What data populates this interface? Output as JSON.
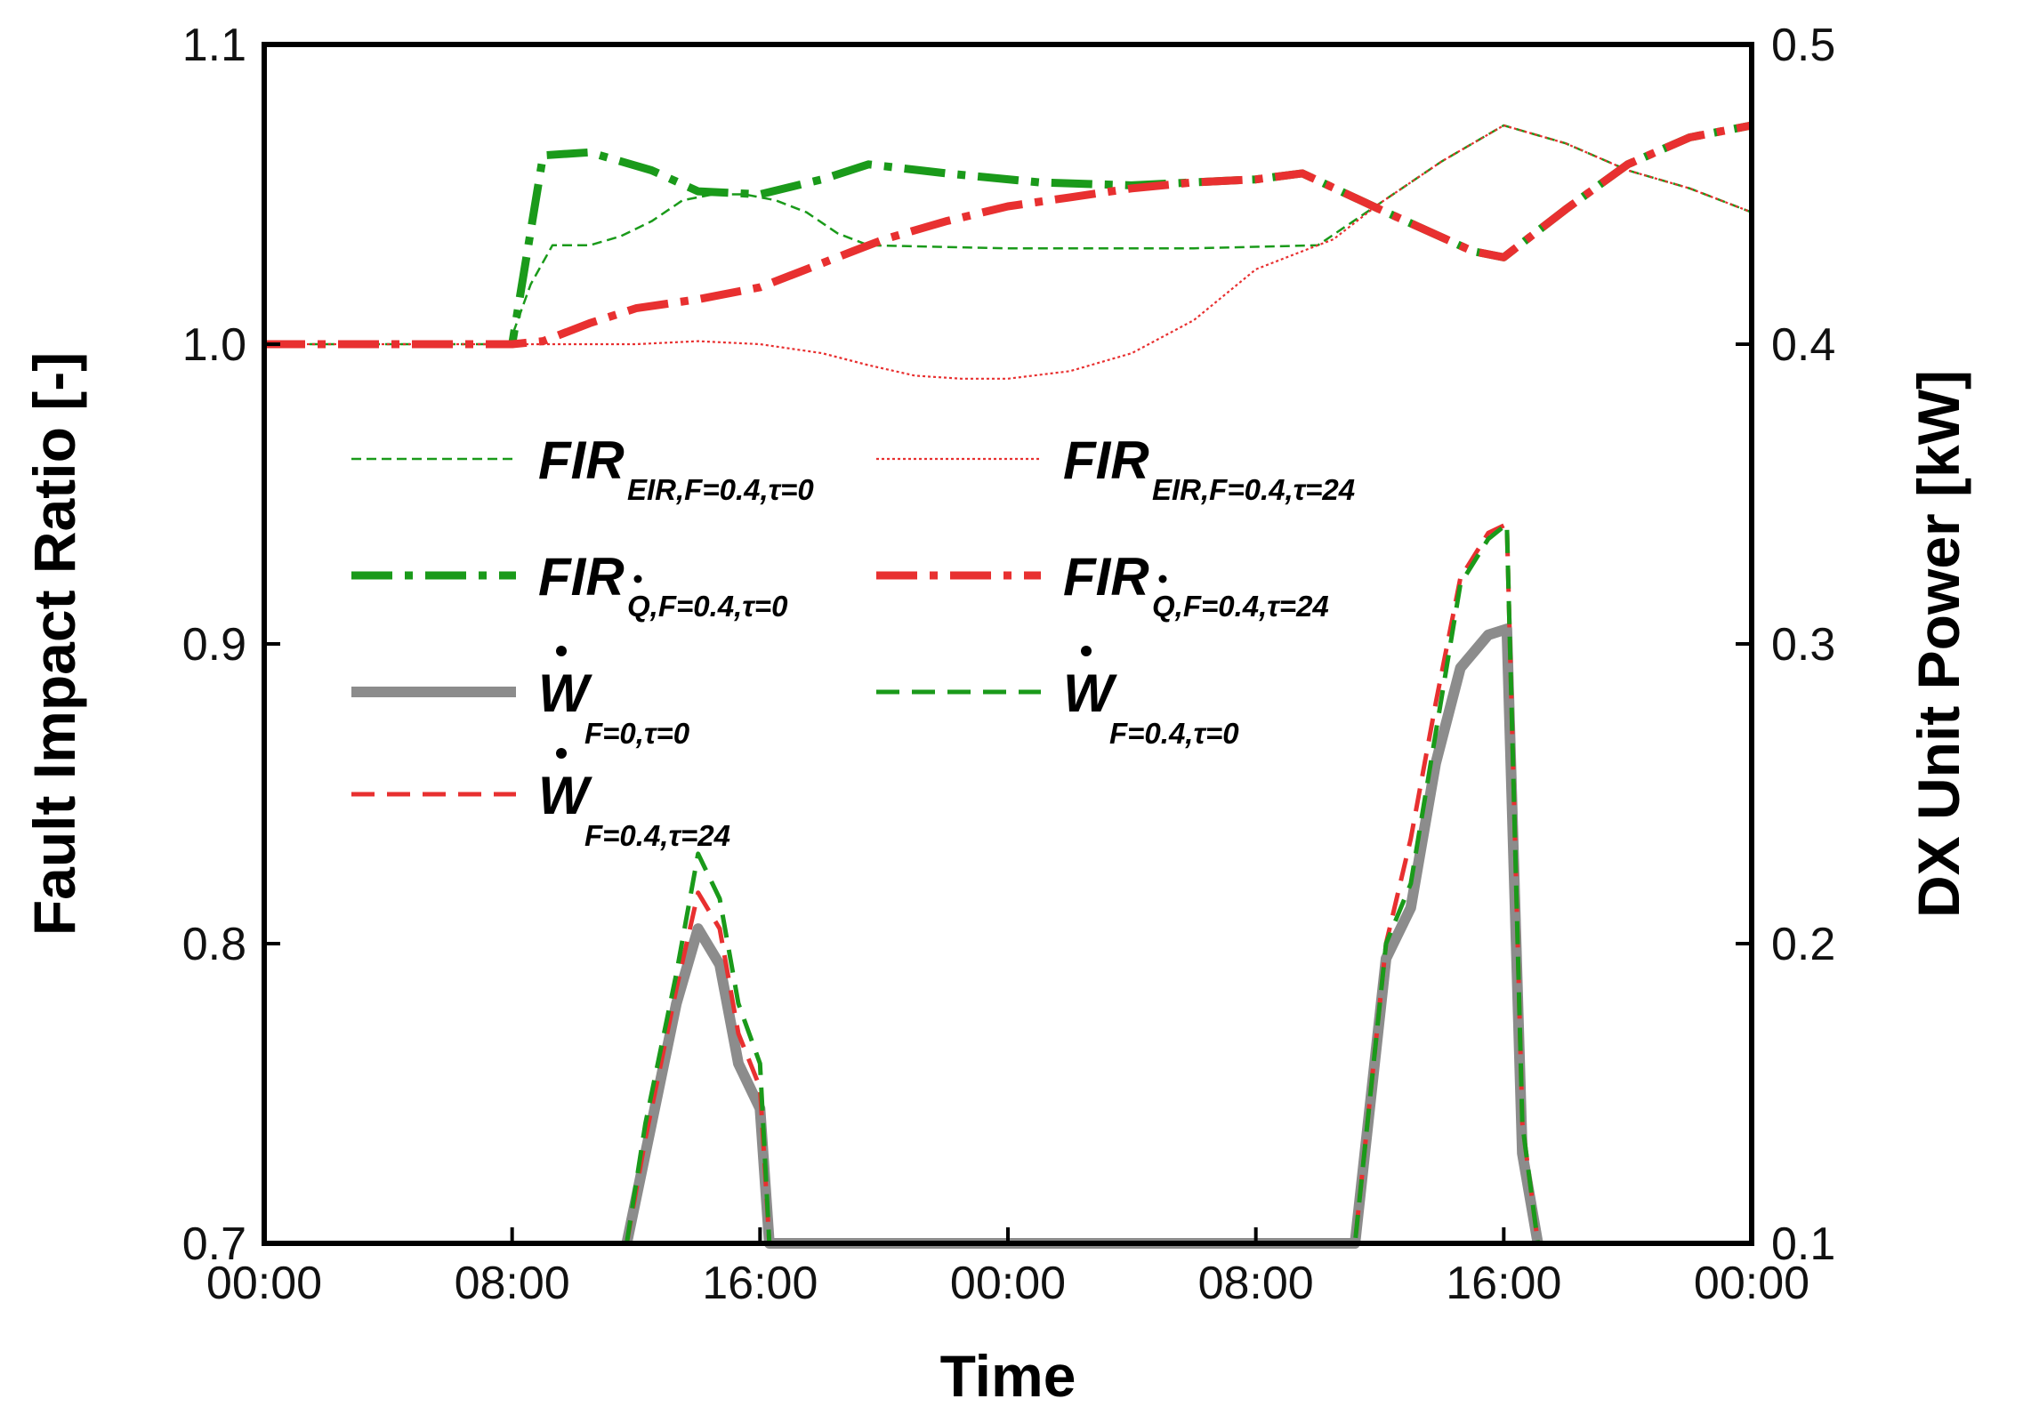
{
  "chart_data": {
    "type": "line",
    "xlabel": "Time",
    "ylabel_left": "Fault Impact Ratio [-]",
    "ylabel_right": "DX Unit Power [kW]",
    "x_tick_labels": [
      "00:00",
      "08:00",
      "16:00",
      "00:00",
      "08:00",
      "16:00",
      "00:00"
    ],
    "x_tick_hours": [
      0,
      8,
      16,
      24,
      32,
      40,
      48
    ],
    "xlim": [
      0,
      48
    ],
    "ylim_left": [
      0.7,
      1.1
    ],
    "ylim_right": [
      0.1,
      0.5
    ],
    "y_left_ticks": [
      "0.7",
      "0.8",
      "0.9",
      "1.0",
      "1.1"
    ],
    "y_left_values": [
      0.7,
      0.8,
      0.9,
      1.0,
      1.1
    ],
    "y_right_ticks": [
      "0.1",
      "0.2",
      "0.3",
      "0.4",
      "0.5"
    ],
    "y_right_values": [
      0.1,
      0.2,
      0.3,
      0.4,
      0.5
    ],
    "series": [
      {
        "key": "fir_eir_t0",
        "axis": "left",
        "color": "#1a9a1a",
        "style": "thin-dashed",
        "legend_main": "FIR",
        "legend_sub": "EIR,F=0.4,τ=0",
        "x": [
          0,
          7.9,
          8.6,
          9.3,
          10.5,
          11.5,
          12.5,
          13.5,
          14.5,
          15.5,
          16.5,
          17.5,
          18.5,
          19.5,
          24,
          30,
          34,
          36,
          38,
          40,
          42,
          44,
          46,
          48
        ],
        "y": [
          1.0,
          1.0,
          1.02,
          1.033,
          1.033,
          1.036,
          1.041,
          1.048,
          1.05,
          1.05,
          1.048,
          1.044,
          1.037,
          1.033,
          1.032,
          1.032,
          1.033,
          1.047,
          1.061,
          1.073,
          1.067,
          1.058,
          1.052,
          1.044
        ]
      },
      {
        "key": "fir_eir_t24",
        "axis": "left",
        "color": "#e83030",
        "style": "thin-dotted",
        "legend_main": "FIR",
        "legend_sub": "EIR,F=0.4,τ=24",
        "x": [
          0,
          8,
          12,
          14,
          16,
          18,
          19.5,
          21,
          22.5,
          24,
          26,
          28,
          30,
          32,
          33.5,
          34.5,
          36,
          38,
          40,
          42,
          44,
          46,
          48
        ],
        "y": [
          1.0,
          1.0,
          1.0,
          1.001,
          1.0,
          0.997,
          0.993,
          0.9895,
          0.9885,
          0.9885,
          0.991,
          0.997,
          1.008,
          1.025,
          1.031,
          1.035,
          1.047,
          1.061,
          1.073,
          1.067,
          1.058,
          1.052,
          1.044
        ]
      },
      {
        "key": "fir_q_t0",
        "axis": "left",
        "color": "#1a9a1a",
        "style": "thick-dashdot",
        "legend_main": "FIR",
        "legend_sub": "Q,F=0.4,τ=0",
        "x": [
          0,
          8,
          9,
          10.5,
          12.5,
          14,
          16,
          18,
          19.5,
          22,
          25,
          28,
          30,
          32,
          33.5,
          36,
          39,
          40,
          42,
          44,
          46,
          48
        ],
        "y": [
          1.0,
          1.0,
          1.063,
          1.064,
          1.058,
          1.051,
          1.05,
          1.055,
          1.06,
          1.057,
          1.054,
          1.053,
          1.054,
          1.055,
          1.057,
          1.045,
          1.031,
          1.029,
          1.045,
          1.06,
          1.069,
          1.073
        ]
      },
      {
        "key": "fir_q_t24",
        "axis": "left",
        "color": "#e83030",
        "style": "thick-dashdot",
        "legend_main": "FIR",
        "legend_sub": "Q,F=0.4,τ=24",
        "x": [
          0,
          8,
          9,
          10.5,
          12,
          14,
          16,
          17,
          18,
          19,
          20,
          22,
          24,
          26,
          28,
          30,
          32,
          33.5,
          36,
          39,
          40,
          42,
          44,
          46,
          48
        ],
        "y": [
          1.0,
          1.0,
          1.001,
          1.007,
          1.012,
          1.015,
          1.019,
          1.023,
          1.027,
          1.031,
          1.035,
          1.041,
          1.046,
          1.049,
          1.052,
          1.054,
          1.055,
          1.057,
          1.045,
          1.031,
          1.029,
          1.045,
          1.06,
          1.069,
          1.073
        ]
      },
      {
        "key": "w_f0",
        "axis": "right",
        "color": "#8c8c8c",
        "style": "thick-solid",
        "legend_main": "W",
        "legend_sub": "F=0,τ=0",
        "x": [
          11.7,
          12.3,
          13.3,
          14,
          14.7,
          15.3,
          16,
          16.3,
          35.2,
          36.2,
          37,
          37.8,
          38.6,
          39.5,
          40.1,
          40.6,
          41.1
        ],
        "y": [
          0.1,
          0.13,
          0.18,
          0.205,
          0.193,
          0.16,
          0.145,
          0.1,
          0.1,
          0.195,
          0.212,
          0.26,
          0.292,
          0.303,
          0.305,
          0.13,
          0.1
        ]
      },
      {
        "key": "w_f04_t0",
        "axis": "right",
        "color": "#1a9a1a",
        "style": "dashed",
        "legend_main": "W",
        "legend_sub": "F=0.4,τ=0",
        "x": [
          11.7,
          12.3,
          13.3,
          14,
          14.7,
          15.3,
          16,
          16.3,
          35.2,
          36.2,
          37,
          37.8,
          38.6,
          39.5,
          40.1,
          40.6,
          41.1
        ],
        "y": [
          0.1,
          0.14,
          0.19,
          0.23,
          0.215,
          0.18,
          0.16,
          0.1,
          0.1,
          0.2,
          0.22,
          0.27,
          0.32,
          0.335,
          0.34,
          0.14,
          0.1
        ]
      },
      {
        "key": "w_f04_t24",
        "axis": "right",
        "color": "#e83030",
        "style": "dashed",
        "legend_main": "W",
        "legend_sub": "F=0.4,τ=24",
        "x": [
          11.7,
          12.3,
          13.3,
          14,
          14.7,
          15.3,
          16,
          16.3,
          35.2,
          36.2,
          37,
          37.8,
          38.6,
          39.5,
          40.1,
          40.6,
          41.1
        ],
        "y": [
          0.1,
          0.135,
          0.185,
          0.217,
          0.205,
          0.17,
          0.152,
          0.1,
          0.1,
          0.2,
          0.235,
          0.28,
          0.322,
          0.337,
          0.34,
          0.14,
          0.1
        ]
      }
    ]
  }
}
